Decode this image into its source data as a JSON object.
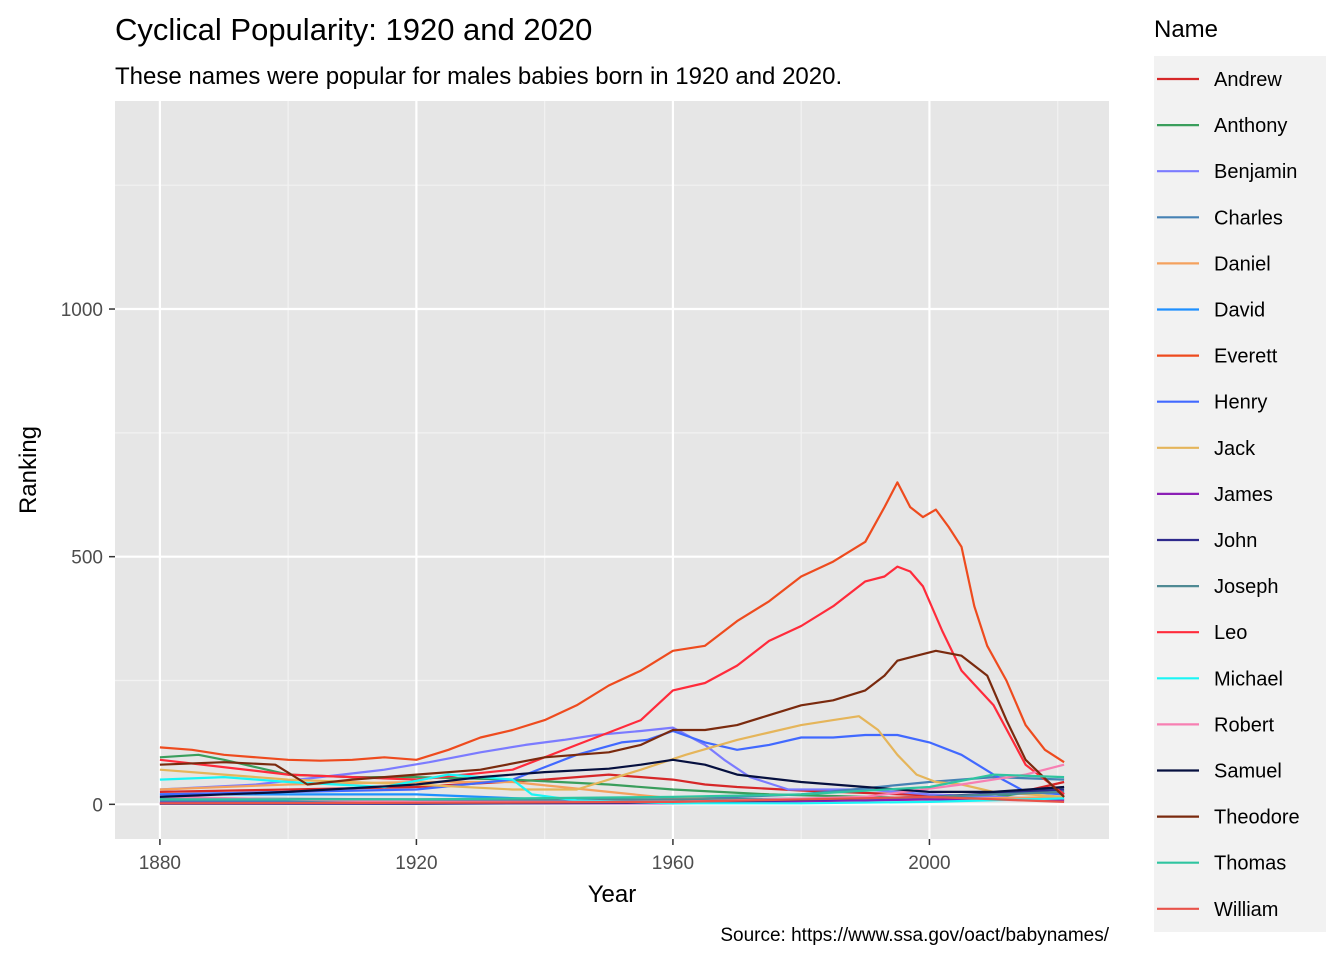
{
  "chart_data": {
    "type": "line",
    "title": "Cyclical Popularity: 1920 and 2020",
    "subtitle": "These names were popular for males babies born in 1920 and 2020.",
    "xlabel": "Year",
    "ylabel": "Ranking",
    "caption": "Source: https://www.ssa.gov/oact/babynames/",
    "xlim": [
      1873,
      2028
    ],
    "ylim": [
      -70,
      1420
    ],
    "x_ticks": [
      1880,
      1920,
      1960,
      2000
    ],
    "y_ticks": [
      0,
      500,
      1000
    ],
    "x_minor_ticks": [
      1900,
      1940,
      1980,
      2020
    ],
    "y_minor_ticks": [
      250,
      750,
      1250
    ],
    "grid": true,
    "legend": {
      "title": "Name",
      "position": "right"
    },
    "series": [
      {
        "name": "Andrew",
        "color": "#d62728",
        "x": [
          1880,
          1900,
          1920,
          1940,
          1950,
          1960,
          1965,
          1970,
          1980,
          2000,
          2010,
          2021
        ],
        "y": [
          25,
          30,
          35,
          50,
          60,
          50,
          40,
          35,
          28,
          18,
          12,
          45
        ]
      },
      {
        "name": "Anthony",
        "color": "#3a9e5c",
        "x": [
          1880,
          1886,
          1890,
          1900,
          1910,
          1920,
          1935,
          1950,
          1960,
          1975,
          1990,
          2000,
          2010,
          2021
        ],
        "y": [
          95,
          100,
          90,
          60,
          55,
          55,
          50,
          40,
          30,
          20,
          15,
          12,
          14,
          35
        ]
      },
      {
        "name": "Benjamin",
        "color": "#7b7bff",
        "x": [
          1880,
          1895,
          1905,
          1915,
          1922,
          1930,
          1937,
          1943,
          1948,
          1955,
          1960,
          1965,
          1968,
          1972,
          1978,
          1990,
          2000,
          2010,
          2021
        ],
        "y": [
          30,
          40,
          55,
          70,
          85,
          105,
          120,
          130,
          140,
          148,
          155,
          120,
          90,
          55,
          30,
          30,
          20,
          15,
          10
        ]
      },
      {
        "name": "Charles",
        "color": "#4682b4",
        "x": [
          1880,
          1920,
          1960,
          1980,
          2000,
          2010,
          2021
        ],
        "y": [
          6,
          6,
          10,
          20,
          45,
          55,
          50
        ]
      },
      {
        "name": "Daniel",
        "color": "#f4a15e",
        "x": [
          1880,
          1900,
          1920,
          1935,
          1950,
          1960,
          1980,
          2000,
          2021
        ],
        "y": [
          30,
          40,
          45,
          45,
          25,
          12,
          8,
          10,
          15
        ]
      },
      {
        "name": "David",
        "color": "#1e90ff",
        "x": [
          1880,
          1920,
          1940,
          1960,
          1980,
          2000,
          2021
        ],
        "y": [
          20,
          20,
          10,
          3,
          8,
          15,
          25
        ]
      },
      {
        "name": "Everett",
        "color": "#ee4b1e",
        "x": [
          1880,
          1885,
          1890,
          1895,
          1900,
          1905,
          1910,
          1915,
          1920,
          1925,
          1930,
          1935,
          1940,
          1945,
          1950,
          1955,
          1960,
          1965,
          1970,
          1975,
          1980,
          1985,
          1990,
          1993,
          1995,
          1997,
          1999,
          2001,
          2003,
          2005,
          2007,
          2009,
          2012,
          2015,
          2018,
          2021
        ],
        "y": [
          115,
          110,
          100,
          95,
          90,
          88,
          90,
          95,
          90,
          110,
          135,
          150,
          170,
          200,
          240,
          270,
          310,
          320,
          370,
          410,
          460,
          490,
          530,
          600,
          650,
          600,
          580,
          595,
          560,
          520,
          400,
          320,
          250,
          160,
          110,
          85
        ]
      },
      {
        "name": "Henry",
        "color": "#4169ff",
        "x": [
          1880,
          1900,
          1920,
          1935,
          1945,
          1952,
          1956,
          1960,
          1965,
          1970,
          1975,
          1980,
          1985,
          1990,
          1995,
          2000,
          2005,
          2010,
          2015,
          2021
        ],
        "y": [
          20,
          25,
          30,
          50,
          100,
          125,
          130,
          148,
          125,
          110,
          120,
          135,
          135,
          140,
          140,
          125,
          100,
          60,
          25,
          20
        ]
      },
      {
        "name": "Jack",
        "color": "#e5b55a",
        "x": [
          1880,
          1890,
          1900,
          1920,
          1935,
          1945,
          1955,
          1962,
          1970,
          1975,
          1980,
          1985,
          1989,
          1992,
          1995,
          1998,
          2001,
          2005,
          2010,
          2021
        ],
        "y": [
          70,
          60,
          50,
          40,
          30,
          30,
          70,
          100,
          130,
          145,
          160,
          170,
          178,
          150,
          100,
          60,
          45,
          40,
          25,
          15
        ]
      },
      {
        "name": "James",
        "color": "#8b1fb5",
        "x": [
          1880,
          1920,
          1960,
          2000,
          2021
        ],
        "y": [
          3,
          2,
          2,
          10,
          8
        ]
      },
      {
        "name": "John",
        "color": "#2e2a8c",
        "x": [
          1880,
          1920,
          1960,
          2000,
          2021
        ],
        "y": [
          1,
          1,
          3,
          15,
          30
        ]
      },
      {
        "name": "Joseph",
        "color": "#4f8a94",
        "x": [
          1880,
          1920,
          1960,
          1990,
          2000,
          2010,
          2021
        ],
        "y": [
          12,
          10,
          10,
          12,
          15,
          20,
          25
        ]
      },
      {
        "name": "Leo",
        "color": "#ff2b3b",
        "x": [
          1880,
          1900,
          1920,
          1935,
          1945,
          1955,
          1960,
          1965,
          1970,
          1975,
          1980,
          1985,
          1990,
          1993,
          1995,
          1997,
          1999,
          2002,
          2005,
          2010,
          2015,
          2021
        ],
        "y": [
          90,
          60,
          50,
          70,
          120,
          170,
          230,
          245,
          280,
          330,
          360,
          400,
          450,
          460,
          480,
          470,
          440,
          350,
          270,
          200,
          80,
          20
        ]
      },
      {
        "name": "Michael",
        "color": "#1af5f5",
        "x": [
          1880,
          1890,
          1900,
          1915,
          1925,
          1935,
          1938,
          1945,
          1960,
          1980,
          2000,
          2021
        ],
        "y": [
          50,
          55,
          45,
          35,
          60,
          50,
          20,
          8,
          2,
          2,
          5,
          12
        ]
      },
      {
        "name": "Robert",
        "color": "#f77fb2",
        "x": [
          1880,
          1920,
          1960,
          1990,
          2005,
          2015,
          2021
        ],
        "y": [
          15,
          5,
          5,
          15,
          40,
          60,
          80
        ]
      },
      {
        "name": "Samuel",
        "color": "#06103f",
        "x": [
          1880,
          1900,
          1920,
          1930,
          1940,
          1950,
          1955,
          1960,
          1965,
          1970,
          1980,
          1990,
          2000,
          2010,
          2021
        ],
        "y": [
          15,
          25,
          40,
          55,
          65,
          72,
          80,
          90,
          80,
          60,
          45,
          35,
          25,
          25,
          35
        ]
      },
      {
        "name": "Theodore",
        "color": "#7a2a0e",
        "x": [
          1880,
          1890,
          1898,
          1903,
          1910,
          1920,
          1930,
          1940,
          1950,
          1955,
          1960,
          1965,
          1970,
          1975,
          1980,
          1985,
          1990,
          1993,
          1995,
          1998,
          2001,
          2005,
          2009,
          2012,
          2015,
          2021
        ],
        "y": [
          80,
          85,
          80,
          40,
          50,
          60,
          70,
          95,
          105,
          120,
          150,
          150,
          160,
          180,
          200,
          210,
          230,
          260,
          290,
          300,
          310,
          300,
          260,
          170,
          90,
          15
        ]
      },
      {
        "name": "Thomas",
        "color": "#2fc4a0",
        "x": [
          1880,
          1920,
          1960,
          1980,
          2000,
          2010,
          2021
        ],
        "y": [
          10,
          10,
          15,
          20,
          35,
          60,
          55
        ]
      },
      {
        "name": "William",
        "color": "#e8534a",
        "x": [
          1880,
          1920,
          1960,
          2000,
          2021
        ],
        "y": [
          2,
          3,
          5,
          15,
          5
        ]
      }
    ]
  }
}
